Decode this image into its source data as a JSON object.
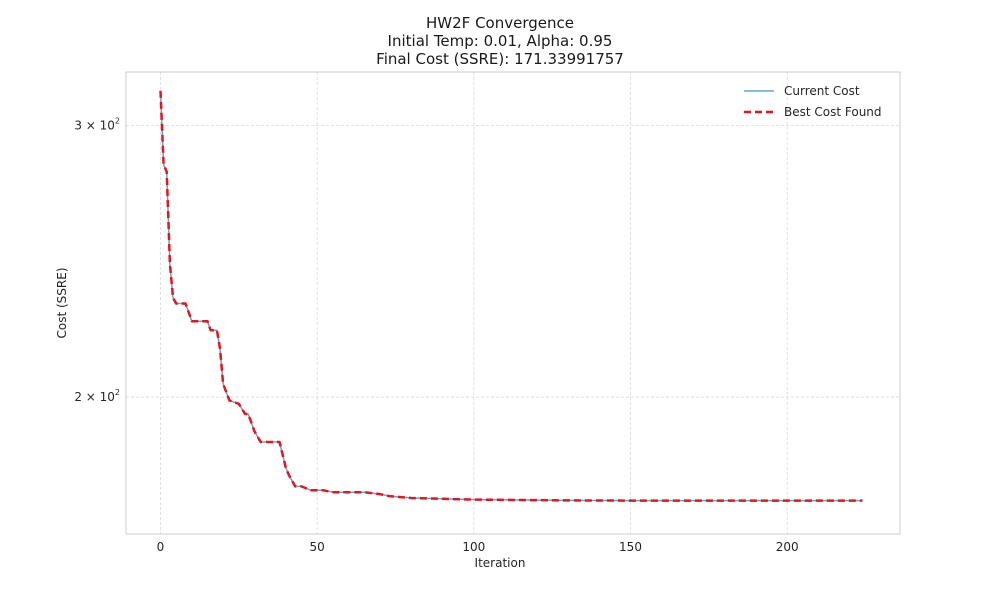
{
  "chart_data": {
    "type": "line",
    "title": "HW2F Convergence",
    "subtitle_lines": [
      "Initial Temp: 0.01, Alpha: 0.95",
      "Final Cost (SSRE): 171.33991757"
    ],
    "xlabel": "Iteration",
    "ylabel": "Cost (SSRE)",
    "xlim": [
      -11,
      236
    ],
    "ylim": [
      163,
      325
    ],
    "yscale": "log",
    "x_ticks": [
      0,
      50,
      100,
      150,
      200
    ],
    "x_tick_labels": [
      "0",
      "50",
      "100",
      "150",
      "200"
    ],
    "y_ticks": [
      {
        "value": 200,
        "mantissa": "2",
        "base": "10",
        "exponent": "2"
      },
      {
        "value": 300,
        "mantissa": "3",
        "base": "10",
        "exponent": "2"
      }
    ],
    "grid": true,
    "legend": {
      "position": "top-right"
    },
    "series": [
      {
        "name": "Current Cost",
        "color": "#5da5da",
        "style": "solid",
        "points": [
          [
            0,
            316
          ],
          [
            1,
            283
          ],
          [
            2,
            280
          ],
          [
            3,
            244
          ],
          [
            4,
            232
          ],
          [
            5,
            230
          ],
          [
            8,
            230
          ],
          [
            9,
            227
          ],
          [
            10,
            224
          ],
          [
            15,
            224
          ],
          [
            16,
            221
          ],
          [
            18,
            221
          ],
          [
            19,
            215
          ],
          [
            20,
            204
          ],
          [
            22,
            199
          ],
          [
            25,
            198
          ],
          [
            27,
            195
          ],
          [
            28,
            195
          ],
          [
            30,
            190
          ],
          [
            32,
            187
          ],
          [
            38,
            187
          ],
          [
            40,
            180
          ],
          [
            41,
            178
          ],
          [
            43,
            175
          ],
          [
            45,
            175
          ],
          [
            48,
            174
          ],
          [
            52,
            174
          ],
          [
            55,
            173.5
          ],
          [
            65,
            173.5
          ],
          [
            70,
            173
          ],
          [
            73,
            172.5
          ],
          [
            80,
            172
          ],
          [
            90,
            171.8
          ],
          [
            100,
            171.6
          ],
          [
            130,
            171.4
          ],
          [
            150,
            171.35
          ],
          [
            200,
            171.34
          ],
          [
            224,
            171.34
          ]
        ]
      },
      {
        "name": "Best Cost Found",
        "color": "#e8141a",
        "style": "dashed",
        "points": [
          [
            0,
            316
          ],
          [
            1,
            283
          ],
          [
            2,
            280
          ],
          [
            3,
            244
          ],
          [
            4,
            232
          ],
          [
            5,
            230
          ],
          [
            8,
            230
          ],
          [
            9,
            227
          ],
          [
            10,
            224
          ],
          [
            15,
            224
          ],
          [
            16,
            221
          ],
          [
            18,
            221
          ],
          [
            19,
            215
          ],
          [
            20,
            204
          ],
          [
            22,
            199
          ],
          [
            25,
            198
          ],
          [
            27,
            195
          ],
          [
            28,
            195
          ],
          [
            30,
            190
          ],
          [
            32,
            187
          ],
          [
            38,
            187
          ],
          [
            40,
            180
          ],
          [
            41,
            178
          ],
          [
            43,
            175
          ],
          [
            45,
            175
          ],
          [
            48,
            174
          ],
          [
            52,
            174
          ],
          [
            55,
            173.5
          ],
          [
            65,
            173.5
          ],
          [
            70,
            173
          ],
          [
            73,
            172.5
          ],
          [
            80,
            172
          ],
          [
            90,
            171.8
          ],
          [
            100,
            171.6
          ],
          [
            130,
            171.4
          ],
          [
            150,
            171.35
          ],
          [
            200,
            171.34
          ],
          [
            224,
            171.34
          ]
        ]
      }
    ]
  }
}
